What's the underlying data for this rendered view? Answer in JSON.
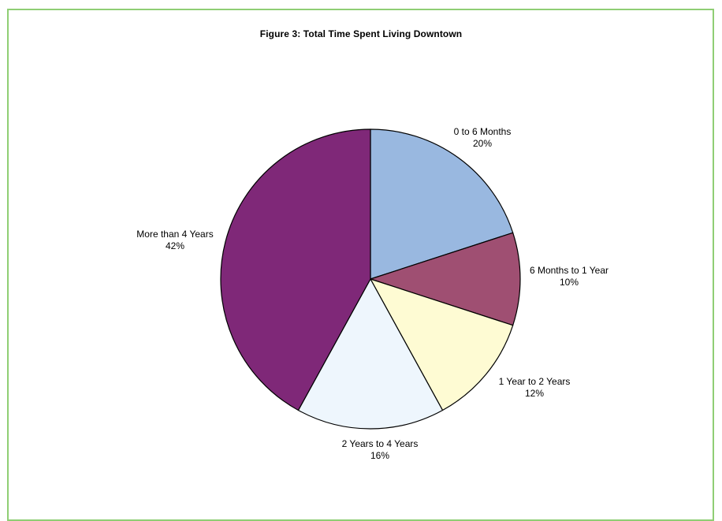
{
  "chart_data": {
    "type": "pie",
    "title": "Figure 3: Total Time Spent Living Downtown",
    "start_angle": "12 o'clock",
    "direction": "clockwise",
    "slices": [
      {
        "label": "0 to 6 Months",
        "value": 20,
        "value_label": "20%",
        "color": "#99b8e0"
      },
      {
        "label": "6 Months to 1 Year",
        "value": 10,
        "value_label": "10%",
        "color": "#9f4f72"
      },
      {
        "label": "1 Year to 2 Years",
        "value": 12,
        "value_label": "12%",
        "color": "#fefbd3"
      },
      {
        "label": "2 Years to 4 Years",
        "value": 16,
        "value_label": "16%",
        "color": "#eef6fd"
      },
      {
        "label": "More than 4 Years",
        "value": 42,
        "value_label": "42%",
        "color": "#7f2878"
      }
    ]
  },
  "style": {
    "frame_color": "#8fce74",
    "slice_outline_color": "#000000"
  }
}
